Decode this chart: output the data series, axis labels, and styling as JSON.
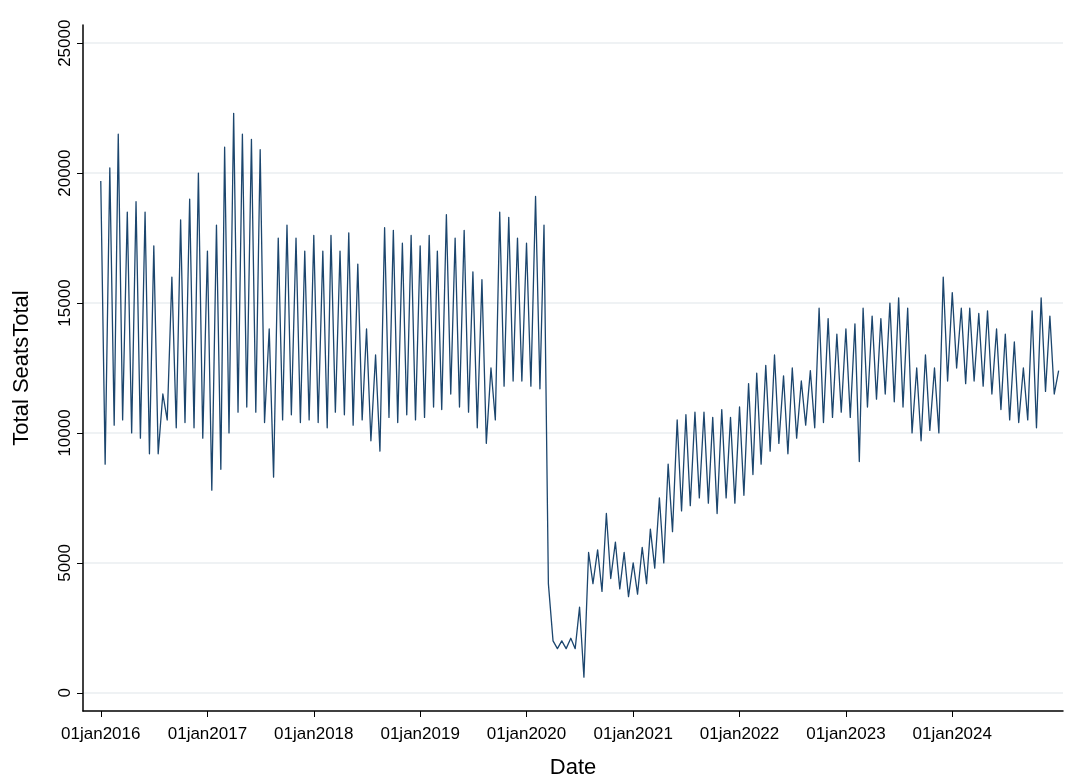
{
  "chart_data": {
    "type": "line",
    "xlabel": "Date",
    "ylabel": "Total SeatsTotal",
    "color": "#1c466e",
    "grid": "y",
    "marker": "none",
    "line_style": "solid",
    "xlim": [
      "2015-11-01",
      "2025-01-15"
    ],
    "ylim": [
      -700,
      25700
    ],
    "xticks": [
      {
        "value": "2016-01-01",
        "label": "01jan2016"
      },
      {
        "value": "2017-01-01",
        "label": "01jan2017"
      },
      {
        "value": "2018-01-01",
        "label": "01jan2018"
      },
      {
        "value": "2019-01-01",
        "label": "01jan2019"
      },
      {
        "value": "2020-01-01",
        "label": "01jan2020"
      },
      {
        "value": "2021-01-01",
        "label": "01jan2021"
      },
      {
        "value": "2022-01-01",
        "label": "01jan2022"
      },
      {
        "value": "2023-01-01",
        "label": "01jan2023"
      },
      {
        "value": "2024-01-01",
        "label": "01jan2024"
      }
    ],
    "yticks": [
      0,
      5000,
      10000,
      15000,
      20000,
      25000
    ],
    "x": [
      "2016-01-01",
      "2016-01-16",
      "2016-02-01",
      "2016-02-16",
      "2016-03-01",
      "2016-03-16",
      "2016-04-01",
      "2016-04-16",
      "2016-05-01",
      "2016-05-16",
      "2016-06-01",
      "2016-06-16",
      "2016-07-01",
      "2016-07-16",
      "2016-08-01",
      "2016-08-16",
      "2016-09-01",
      "2016-09-16",
      "2016-10-01",
      "2016-10-16",
      "2016-11-01",
      "2016-11-16",
      "2016-12-01",
      "2016-12-16",
      "2017-01-01",
      "2017-01-16",
      "2017-02-01",
      "2017-02-16",
      "2017-03-01",
      "2017-03-16",
      "2017-04-01",
      "2017-04-16",
      "2017-05-01",
      "2017-05-16",
      "2017-06-01",
      "2017-06-16",
      "2017-07-01",
      "2017-07-16",
      "2017-08-01",
      "2017-08-16",
      "2017-09-01",
      "2017-09-16",
      "2017-10-01",
      "2017-10-16",
      "2017-11-01",
      "2017-11-16",
      "2017-12-01",
      "2017-12-16",
      "2018-01-01",
      "2018-01-16",
      "2018-02-01",
      "2018-02-16",
      "2018-03-01",
      "2018-03-16",
      "2018-04-01",
      "2018-04-16",
      "2018-05-01",
      "2018-05-16",
      "2018-06-01",
      "2018-06-16",
      "2018-07-01",
      "2018-07-16",
      "2018-08-01",
      "2018-08-16",
      "2018-09-01",
      "2018-09-16",
      "2018-10-01",
      "2018-10-16",
      "2018-11-01",
      "2018-11-16",
      "2018-12-01",
      "2018-12-16",
      "2019-01-01",
      "2019-01-16",
      "2019-02-01",
      "2019-02-16",
      "2019-03-01",
      "2019-03-16",
      "2019-04-01",
      "2019-04-16",
      "2019-05-01",
      "2019-05-16",
      "2019-06-01",
      "2019-06-16",
      "2019-07-01",
      "2019-07-16",
      "2019-08-01",
      "2019-08-16",
      "2019-09-01",
      "2019-09-16",
      "2019-10-01",
      "2019-10-16",
      "2019-11-01",
      "2019-11-16",
      "2019-12-01",
      "2019-12-16",
      "2020-01-01",
      "2020-01-16",
      "2020-02-01",
      "2020-02-16",
      "2020-03-01",
      "2020-03-16",
      "2020-04-01",
      "2020-04-16",
      "2020-05-01",
      "2020-05-16",
      "2020-06-01",
      "2020-06-16",
      "2020-07-01",
      "2020-07-16",
      "2020-08-01",
      "2020-08-16",
      "2020-09-01",
      "2020-09-16",
      "2020-10-01",
      "2020-10-16",
      "2020-11-01",
      "2020-11-16",
      "2020-12-01",
      "2020-12-16",
      "2021-01-01",
      "2021-01-16",
      "2021-02-01",
      "2021-02-16",
      "2021-03-01",
      "2021-03-16",
      "2021-04-01",
      "2021-04-16",
      "2021-05-01",
      "2021-05-16",
      "2021-06-01",
      "2021-06-16",
      "2021-07-01",
      "2021-07-16",
      "2021-08-01",
      "2021-08-16",
      "2021-09-01",
      "2021-09-16",
      "2021-10-01",
      "2021-10-16",
      "2021-11-01",
      "2021-11-16",
      "2021-12-01",
      "2021-12-16",
      "2022-01-01",
      "2022-01-16",
      "2022-02-01",
      "2022-02-16",
      "2022-03-01",
      "2022-03-16",
      "2022-04-01",
      "2022-04-16",
      "2022-05-01",
      "2022-05-16",
      "2022-06-01",
      "2022-06-16",
      "2022-07-01",
      "2022-07-16",
      "2022-08-01",
      "2022-08-16",
      "2022-09-01",
      "2022-09-16",
      "2022-10-01",
      "2022-10-16",
      "2022-11-01",
      "2022-11-16",
      "2022-12-01",
      "2022-12-16",
      "2023-01-01",
      "2023-01-16",
      "2023-02-01",
      "2023-02-16",
      "2023-03-01",
      "2023-03-16",
      "2023-04-01",
      "2023-04-16",
      "2023-05-01",
      "2023-05-16",
      "2023-06-01",
      "2023-06-16",
      "2023-07-01",
      "2023-07-16",
      "2023-08-01",
      "2023-08-16",
      "2023-09-01",
      "2023-09-16",
      "2023-10-01",
      "2023-10-16",
      "2023-11-01",
      "2023-11-16",
      "2023-12-01",
      "2023-12-16",
      "2024-01-01",
      "2024-01-16",
      "2024-02-01",
      "2024-02-16",
      "2024-03-01",
      "2024-03-16",
      "2024-04-01",
      "2024-04-16",
      "2024-05-01",
      "2024-05-16",
      "2024-06-01",
      "2024-06-16",
      "2024-07-01",
      "2024-07-16",
      "2024-08-01",
      "2024-08-16",
      "2024-09-01",
      "2024-09-16",
      "2024-10-01",
      "2024-10-16",
      "2024-11-01",
      "2024-11-16",
      "2024-12-01",
      "2024-12-16",
      "2024-12-31"
    ],
    "values": [
      19700,
      8800,
      20200,
      10300,
      21500,
      10500,
      18500,
      10000,
      18900,
      9800,
      18500,
      9200,
      17200,
      9200,
      11500,
      10500,
      16000,
      10200,
      18200,
      10400,
      19000,
      10200,
      20000,
      9800,
      17000,
      7800,
      18000,
      8600,
      21000,
      10000,
      22300,
      10800,
      21500,
      11000,
      21300,
      10800,
      20900,
      10400,
      14000,
      8300,
      17500,
      10500,
      18000,
      10700,
      17500,
      10400,
      17000,
      10500,
      17600,
      10400,
      17000,
      10200,
      17600,
      10800,
      17000,
      10700,
      17700,
      10300,
      16500,
      10500,
      14000,
      9700,
      13000,
      9300,
      17900,
      10600,
      17800,
      10400,
      17300,
      10700,
      17600,
      10500,
      17200,
      10600,
      17600,
      11000,
      17000,
      10900,
      18400,
      11500,
      17500,
      11000,
      17800,
      10800,
      16200,
      10200,
      15900,
      9600,
      12500,
      10500,
      18500,
      11800,
      18300,
      12000,
      17500,
      12000,
      17300,
      11800,
      19100,
      11700,
      18000,
      4200,
      2000,
      1700,
      2000,
      1700,
      2100,
      1700,
      3300,
      600,
      5400,
      4200,
      5500,
      3900,
      6900,
      4400,
      5800,
      4000,
      5400,
      3700,
      5000,
      3800,
      5600,
      4200,
      6300,
      4800,
      7500,
      5000,
      8800,
      6200,
      10500,
      7000,
      10700,
      7200,
      10800,
      7500,
      10800,
      7300,
      10600,
      6900,
      10900,
      7500,
      10600,
      7300,
      11000,
      7600,
      11900,
      8400,
      12300,
      8800,
      12600,
      9300,
      13000,
      9600,
      12200,
      9200,
      12500,
      9800,
      12000,
      10300,
      12400,
      10200,
      14800,
      10400,
      14400,
      10600,
      13800,
      10800,
      14000,
      10600,
      14200,
      8900,
      14800,
      11000,
      14500,
      11300,
      14400,
      11500,
      15000,
      11200,
      15200,
      11000,
      14800,
      10000,
      12500,
      9700,
      13000,
      10100,
      12500,
      10000,
      16000,
      12000,
      15400,
      12500,
      14800,
      11900,
      14800,
      12000,
      14600,
      11800,
      14700,
      11500,
      14000,
      10900,
      13800,
      10500,
      13500,
      10400,
      12500,
      10500,
      14700,
      10200,
      15200,
      11600,
      14500,
      11500,
      12400
    ]
  }
}
